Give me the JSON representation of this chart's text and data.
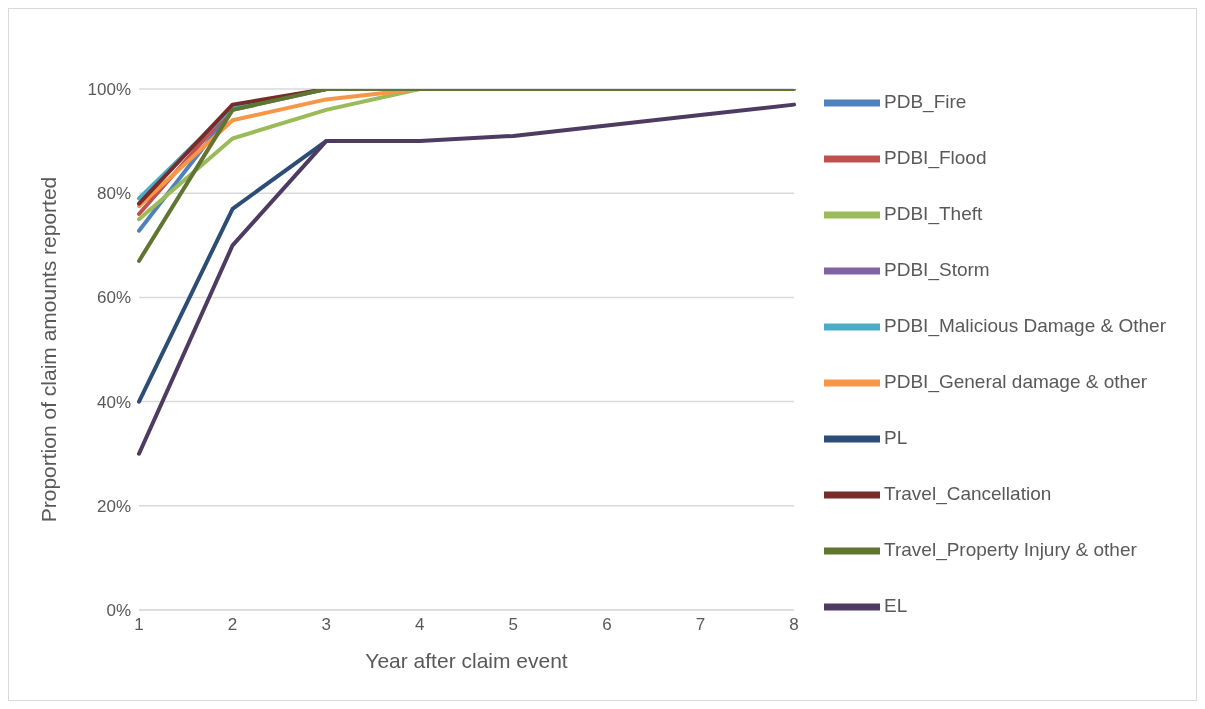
{
  "chart_data": {
    "type": "line",
    "xlabel": "Year after claim event",
    "ylabel": "Proportion of claim amounts reported",
    "categories": [
      "1",
      "2",
      "3",
      "4",
      "5",
      "6",
      "7",
      "8"
    ],
    "ylim": [
      0,
      100
    ],
    "yticks": [
      {
        "value": 0,
        "label": "0%"
      },
      {
        "value": 20,
        "label": "20%"
      },
      {
        "value": 40,
        "label": "40%"
      },
      {
        "value": 60,
        "label": "60%"
      },
      {
        "value": 80,
        "label": "80%"
      },
      {
        "value": 100,
        "label": "100%"
      }
    ],
    "grid": "y",
    "legend": "right",
    "marker": "none",
    "line_style": "solid",
    "series": [
      {
        "name": "PDB_Fire",
        "color": "#4f81bd",
        "values": [
          72.8,
          96,
          100,
          null,
          null,
          null,
          null,
          null
        ]
      },
      {
        "name": "PDBI_Flood",
        "color": "#c0504d",
        "values": [
          76,
          96.5,
          100,
          null,
          null,
          null,
          null,
          null
        ]
      },
      {
        "name": "PDBI_Theft",
        "color": "#9bbb59",
        "values": [
          75,
          90.5,
          96,
          100,
          null,
          null,
          null,
          null
        ]
      },
      {
        "name": "PDBI_Storm",
        "color": "#8064a2",
        "values": [
          null,
          null,
          null,
          null,
          null,
          null,
          null,
          null
        ]
      },
      {
        "name": "PDBI_Malicious Damage & Other",
        "color": "#4bacc6",
        "values": [
          79,
          96.5,
          100,
          null,
          null,
          null,
          null,
          null
        ]
      },
      {
        "name": "PDBI_General damage & other",
        "color": "#f79646",
        "values": [
          77.5,
          94,
          98,
          100,
          null,
          null,
          null,
          null
        ]
      },
      {
        "name": "PL",
        "color": "#2c4d75",
        "values": [
          40,
          77,
          90,
          null,
          null,
          null,
          null,
          null
        ]
      },
      {
        "name": "Travel_Cancellation",
        "color": "#772c2a",
        "values": [
          78,
          97,
          100,
          null,
          null,
          null,
          null,
          null
        ]
      },
      {
        "name": "Travel_Property Injury & other",
        "color": "#5f7530",
        "values": [
          67,
          96,
          100,
          100,
          100,
          100,
          100,
          100
        ]
      },
      {
        "name": "EL",
        "color": "#4d3b62",
        "values": [
          30,
          70,
          90,
          90,
          91,
          93,
          95,
          97
        ]
      }
    ]
  }
}
